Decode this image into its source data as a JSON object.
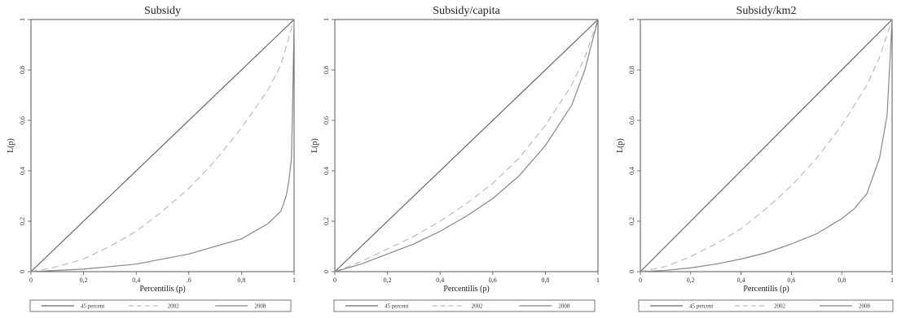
{
  "chart_data": [
    {
      "type": "line",
      "title": "Subsidy",
      "xlabel": "Percentilis (p)",
      "ylabel": "L(p)",
      "xlim": [
        0,
        1
      ],
      "ylim": [
        0,
        1
      ],
      "x_tick_labels": [
        "0",
        "0,2",
        "0,4",
        ".6",
        "0,8",
        "1"
      ],
      "y_tick_labels": [
        "0",
        "0,2",
        "0,4",
        "0,6",
        "0,8",
        "1"
      ],
      "legend_position": "bottom",
      "series": [
        {
          "name": "45 percent",
          "style": "solid",
          "color": "#666666",
          "x": [
            0,
            1
          ],
          "y": [
            0,
            1
          ]
        },
        {
          "name": "2002",
          "style": "dashed",
          "color": "#bdbdbd",
          "x": [
            0,
            0.1,
            0.2,
            0.3,
            0.4,
            0.5,
            0.6,
            0.7,
            0.8,
            0.9,
            0.95,
            1.0
          ],
          "y": [
            0,
            0.02,
            0.05,
            0.1,
            0.16,
            0.24,
            0.33,
            0.44,
            0.57,
            0.72,
            0.82,
            1.0
          ]
        },
        {
          "name": "2008",
          "style": "solid",
          "color": "#888888",
          "x": [
            0,
            0.2,
            0.4,
            0.6,
            0.8,
            0.9,
            0.95,
            0.97,
            0.98,
            0.99,
            0.995,
            1.0
          ],
          "y": [
            0,
            0.01,
            0.03,
            0.07,
            0.13,
            0.19,
            0.24,
            0.3,
            0.36,
            0.45,
            0.7,
            1.0
          ]
        }
      ]
    },
    {
      "type": "line",
      "title": "Subsidy/capita",
      "xlabel": "Percentilis (p)",
      "ylabel": "L(p)",
      "xlim": [
        0,
        1
      ],
      "ylim": [
        0,
        1
      ],
      "x_tick_labels": [
        "0",
        "0,2",
        "0,4",
        "0,6",
        "0,8",
        "1"
      ],
      "y_tick_labels": [
        "0",
        "0,2",
        "0,4",
        "0,6",
        "0,8",
        "1"
      ],
      "legend_position": "bottom",
      "series": [
        {
          "name": "45 percent",
          "style": "solid",
          "color": "#666666",
          "x": [
            0,
            1
          ],
          "y": [
            0,
            1
          ]
        },
        {
          "name": "2002",
          "style": "dashed",
          "color": "#bdbdbd",
          "x": [
            0,
            0.1,
            0.2,
            0.3,
            0.4,
            0.5,
            0.6,
            0.7,
            0.8,
            0.9,
            0.95,
            1.0
          ],
          "y": [
            0,
            0.04,
            0.09,
            0.14,
            0.2,
            0.27,
            0.35,
            0.45,
            0.58,
            0.74,
            0.85,
            1.0
          ]
        },
        {
          "name": "2008",
          "style": "solid",
          "color": "#888888",
          "x": [
            0,
            0.1,
            0.2,
            0.3,
            0.4,
            0.5,
            0.6,
            0.7,
            0.8,
            0.9,
            0.95,
            1.0
          ],
          "y": [
            0,
            0.03,
            0.07,
            0.11,
            0.16,
            0.22,
            0.29,
            0.38,
            0.5,
            0.66,
            0.8,
            1.0
          ]
        }
      ]
    },
    {
      "type": "line",
      "title": "Subsidy/km2",
      "xlabel": "Percentilis (p)",
      "ylabel": "L(p)",
      "xlim": [
        0,
        1
      ],
      "ylim": [
        0,
        1
      ],
      "x_tick_labels": [
        "0",
        "0,2",
        "0,4",
        "0,6",
        "0,8",
        "1"
      ],
      "y_tick_labels": [
        "0",
        "0,2",
        "0,4",
        "0,6",
        "0,8",
        "1"
      ],
      "legend_position": "bottom",
      "series": [
        {
          "name": "45 percent",
          "style": "solid",
          "color": "#666666",
          "x": [
            0,
            1
          ],
          "y": [
            0,
            1
          ]
        },
        {
          "name": "2002",
          "style": "dashed",
          "color": "#bdbdbd",
          "x": [
            0,
            0.1,
            0.2,
            0.3,
            0.4,
            0.5,
            0.6,
            0.7,
            0.8,
            0.9,
            0.95,
            1.0
          ],
          "y": [
            0,
            0.02,
            0.06,
            0.11,
            0.17,
            0.25,
            0.34,
            0.45,
            0.58,
            0.74,
            0.85,
            1.0
          ]
        },
        {
          "name": "2008",
          "style": "solid",
          "color": "#888888",
          "x": [
            0,
            0.1,
            0.2,
            0.3,
            0.4,
            0.5,
            0.6,
            0.7,
            0.8,
            0.85,
            0.9,
            0.95,
            0.98,
            1.0
          ],
          "y": [
            0,
            0.005,
            0.015,
            0.03,
            0.05,
            0.075,
            0.11,
            0.15,
            0.21,
            0.25,
            0.31,
            0.45,
            0.62,
            1.0
          ]
        }
      ]
    }
  ]
}
